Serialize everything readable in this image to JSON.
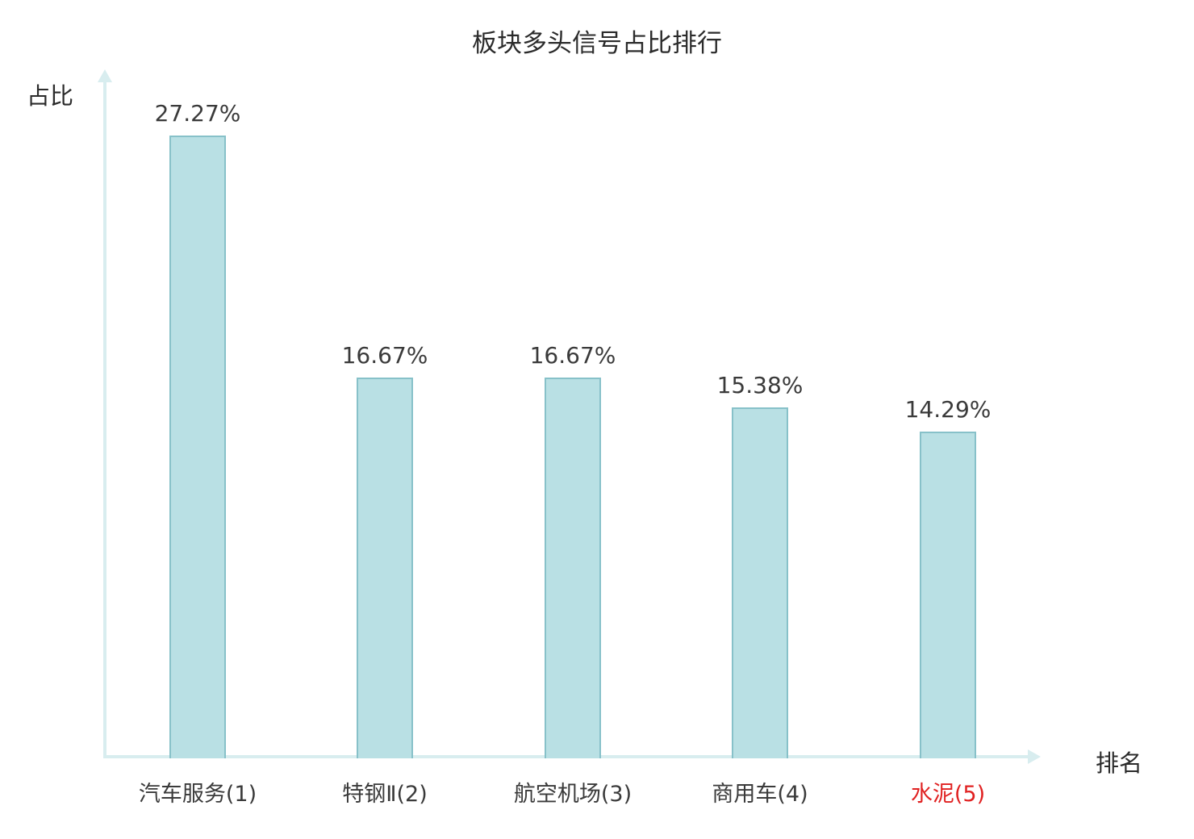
{
  "chart_data": {
    "type": "bar",
    "title": "板块多头信号占比排行",
    "xlabel": "排名",
    "ylabel": "占比",
    "categories": [
      "汽车服务(1)",
      "特钢Ⅱ(2)",
      "航空机场(3)",
      "商用车(4)",
      "水泥(5)"
    ],
    "values": [
      27.27,
      16.67,
      16.67,
      15.38,
      14.29
    ],
    "value_labels": [
      "27.27%",
      "16.67%",
      "16.67%",
      "15.38%",
      "14.29%"
    ],
    "highlight_index": 4,
    "highlight_color": "#e02020",
    "bar_fill": "#b9e0e4",
    "bar_border": "#87c1c9",
    "axis_color": "#d8edef",
    "ylim": [
      0,
      30
    ],
    "grid": false,
    "legend": "none"
  }
}
